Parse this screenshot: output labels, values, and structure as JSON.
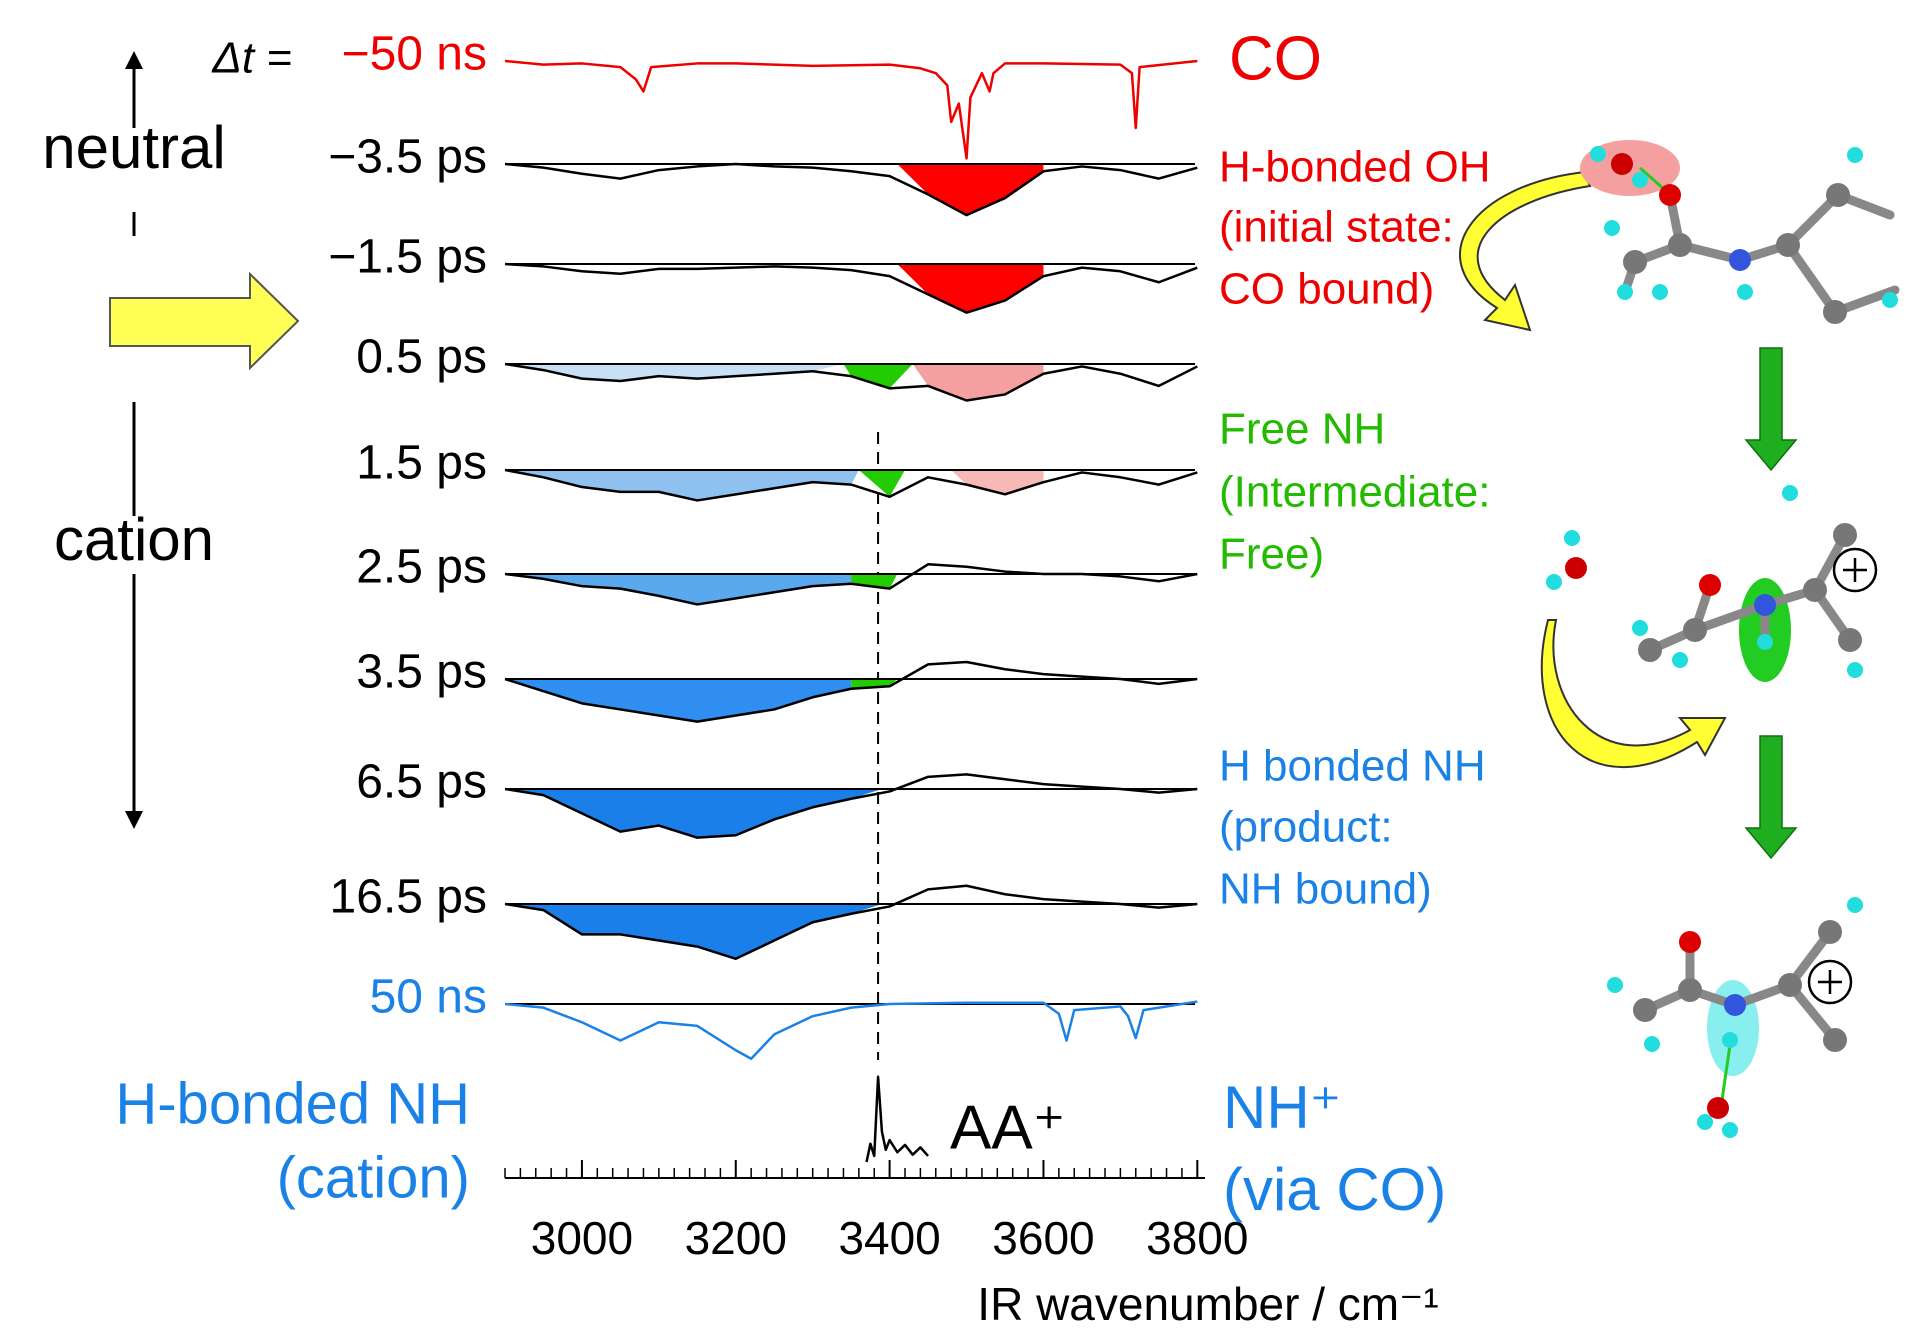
{
  "chart_data": {
    "type": "line",
    "delta_label": "Δt =",
    "xlim": [
      2900,
      3810
    ],
    "xticks": [
      3000,
      3200,
      3400,
      3600,
      3800
    ],
    "minor_tick_step": 20,
    "xlabel": "IR wavenumber / cm⁻¹",
    "reference_line": 3385,
    "series": [
      {
        "name": "−50 ns",
        "color": "#ee0000",
        "baseline": false,
        "x": [
          2900,
          2950,
          3000,
          3050,
          3070,
          3080,
          3090,
          3150,
          3200,
          3300,
          3400,
          3440,
          3460,
          3475,
          3480,
          3490,
          3500,
          3505,
          3520,
          3530,
          3535,
          3550,
          3600,
          3700,
          3715,
          3720,
          3725,
          3800
        ],
        "values": [
          0,
          -3,
          -2,
          -5,
          -15,
          -25,
          -5,
          -2,
          -2,
          -4,
          -3,
          -6,
          -10,
          -20,
          -50,
          -35,
          -80,
          -30,
          -10,
          -25,
          -10,
          -2,
          -2,
          -3,
          -10,
          -55,
          -5,
          0
        ],
        "fills": []
      },
      {
        "name": "−3.5 ps",
        "color": "#000000",
        "baseline": true,
        "x": [
          2900,
          2950,
          3000,
          3050,
          3100,
          3150,
          3200,
          3250,
          3300,
          3350,
          3400,
          3450,
          3500,
          3550,
          3600,
          3650,
          3700,
          3750,
          3800
        ],
        "values": [
          0,
          -3,
          -8,
          -12,
          -5,
          -2,
          0,
          -2,
          -3,
          -6,
          -10,
          -25,
          -42,
          -28,
          -6,
          -2,
          -5,
          -12,
          -3
        ],
        "fills": [
          {
            "from": 3410,
            "to": 3600,
            "color": "#ff0000"
          }
        ]
      },
      {
        "name": "−1.5 ps",
        "color": "#000000",
        "baseline": true,
        "x": [
          2900,
          2950,
          3000,
          3050,
          3100,
          3150,
          3200,
          3250,
          3300,
          3350,
          3400,
          3450,
          3500,
          3550,
          3600,
          3650,
          3700,
          3750,
          3800
        ],
        "values": [
          0,
          -2,
          -6,
          -8,
          -4,
          -4,
          -3,
          -2,
          -3,
          -5,
          -10,
          -25,
          -40,
          -30,
          -10,
          -3,
          -6,
          -15,
          -3
        ],
        "fills": [
          {
            "from": 3410,
            "to": 3600,
            "color": "#ff0000"
          }
        ]
      },
      {
        "name": "0.5 ps",
        "color": "#000000",
        "baseline": true,
        "x": [
          2900,
          2950,
          3000,
          3050,
          3100,
          3150,
          3200,
          3250,
          3300,
          3350,
          3400,
          3450,
          3500,
          3550,
          3600,
          3650,
          3700,
          3750,
          3800
        ],
        "values": [
          0,
          -5,
          -12,
          -14,
          -10,
          -12,
          -10,
          -8,
          -6,
          -10,
          -20,
          -18,
          -30,
          -25,
          -8,
          -2,
          -8,
          -18,
          -2
        ],
        "fills": [
          {
            "from": 2900,
            "to": 3340,
            "color": "#c8e0f6"
          },
          {
            "from": 3340,
            "to": 3430,
            "color": "#22cc00"
          },
          {
            "from": 3430,
            "to": 3600,
            "color": "#f4a0a0"
          }
        ]
      },
      {
        "name": "1.5 ps",
        "color": "#000000",
        "baseline": true,
        "x": [
          2900,
          2950,
          3000,
          3050,
          3100,
          3150,
          3200,
          3250,
          3300,
          3350,
          3400,
          3450,
          3500,
          3550,
          3600,
          3650,
          3700,
          3750,
          3800
        ],
        "values": [
          0,
          -6,
          -14,
          -18,
          -18,
          -25,
          -20,
          -15,
          -10,
          -12,
          -22,
          -6,
          -12,
          -20,
          -10,
          -2,
          -6,
          -12,
          -2
        ],
        "fills": [
          {
            "from": 2900,
            "to": 3360,
            "color": "#8ec0f0"
          },
          {
            "from": 3360,
            "to": 3420,
            "color": "#22cc00"
          },
          {
            "from": 3480,
            "to": 3600,
            "color": "#f8b8b8"
          }
        ]
      },
      {
        "name": "2.5 ps",
        "color": "#000000",
        "baseline": true,
        "x": [
          2900,
          2950,
          3000,
          3050,
          3100,
          3150,
          3200,
          3250,
          3300,
          3350,
          3400,
          3450,
          3500,
          3550,
          3600,
          3650,
          3700,
          3750,
          3800
        ],
        "values": [
          0,
          -4,
          -10,
          -12,
          -18,
          -25,
          -20,
          -15,
          -10,
          -8,
          -12,
          8,
          6,
          2,
          0,
          0,
          -2,
          -6,
          0
        ],
        "fills": [
          {
            "from": 2900,
            "to": 3350,
            "color": "#5aa8ee"
          },
          {
            "from": 3350,
            "to": 3410,
            "color": "#22cc00"
          }
        ]
      },
      {
        "name": "3.5 ps",
        "color": "#000000",
        "baseline": true,
        "x": [
          2900,
          2950,
          3000,
          3050,
          3100,
          3150,
          3200,
          3250,
          3300,
          3350,
          3400,
          3450,
          3500,
          3550,
          3600,
          3650,
          3700,
          3750,
          3800
        ],
        "values": [
          0,
          -10,
          -20,
          -25,
          -30,
          -35,
          -30,
          -25,
          -15,
          -8,
          -6,
          12,
          14,
          8,
          4,
          2,
          0,
          -4,
          0
        ],
        "fills": [
          {
            "from": 2900,
            "to": 3350,
            "color": "#2f8ef0"
          },
          {
            "from": 3350,
            "to": 3410,
            "color": "#22cc00"
          }
        ]
      },
      {
        "name": "6.5 ps",
        "color": "#000000",
        "baseline": true,
        "x": [
          2900,
          2950,
          3000,
          3050,
          3100,
          3150,
          3200,
          3250,
          3300,
          3350,
          3400,
          3450,
          3500,
          3550,
          3600,
          3650,
          3700,
          3750,
          3800
        ],
        "values": [
          0,
          -5,
          -20,
          -35,
          -30,
          -40,
          -38,
          -25,
          -15,
          -8,
          -2,
          10,
          12,
          8,
          4,
          2,
          0,
          -3,
          0
        ],
        "fills": [
          {
            "from": 2900,
            "to": 3390,
            "color": "#1a7fe8"
          }
        ]
      },
      {
        "name": "16.5 ps",
        "color": "#000000",
        "baseline": true,
        "x": [
          2900,
          2950,
          3000,
          3050,
          3100,
          3150,
          3200,
          3250,
          3300,
          3350,
          3400,
          3450,
          3500,
          3550,
          3600,
          3650,
          3700,
          3750,
          3800
        ],
        "values": [
          0,
          -5,
          -25,
          -25,
          -30,
          -35,
          -45,
          -30,
          -15,
          -8,
          -2,
          12,
          15,
          8,
          4,
          2,
          0,
          -3,
          0
        ],
        "fills": [
          {
            "from": 2900,
            "to": 3390,
            "color": "#1a7fe8"
          }
        ]
      },
      {
        "name": "50 ns",
        "color": "#1a82e6",
        "baseline": true,
        "x": [
          2900,
          2950,
          3000,
          3050,
          3100,
          3150,
          3200,
          3220,
          3250,
          3300,
          3350,
          3400,
          3500,
          3600,
          3620,
          3630,
          3640,
          3700,
          3710,
          3720,
          3730,
          3800
        ],
        "values": [
          0,
          -3,
          -15,
          -30,
          -15,
          -18,
          -38,
          -45,
          -25,
          -10,
          -3,
          0,
          1,
          1,
          -8,
          -30,
          -5,
          -2,
          -10,
          -28,
          -5,
          2
        ],
        "fills": []
      },
      {
        "name": "AA⁺",
        "color": "#000000",
        "baseline": false,
        "x": [
          3370,
          3375,
          3380,
          3385,
          3390,
          3395,
          3400,
          3410,
          3420,
          3430,
          3440,
          3450
        ],
        "values": [
          0,
          15,
          5,
          70,
          25,
          10,
          18,
          8,
          14,
          6,
          12,
          5
        ],
        "fills": []
      }
    ],
    "annotations": [
      {
        "lines": [
          "CO"
        ],
        "color": "#ee0000"
      },
      {
        "lines": [
          "H-bonded OH",
          "(initial state:",
          "CO bound)"
        ],
        "color": "#ee0000"
      },
      {
        "lines": [
          "Free NH",
          "(Intermediate:",
          "Free)"
        ],
        "color": "#22bb00"
      },
      {
        "lines": [
          "H bonded NH",
          "(product:",
          "NH bound)"
        ],
        "color": "#1a82e6"
      },
      {
        "lines": [
          "NH⁺",
          "(via CO)"
        ],
        "color": "#1a82e6"
      },
      {
        "lines": [
          "H-bonded NH",
          "(cation)"
        ],
        "color": "#1a82e6"
      }
    ],
    "state_labels": [
      "neutral",
      "cation"
    ]
  }
}
